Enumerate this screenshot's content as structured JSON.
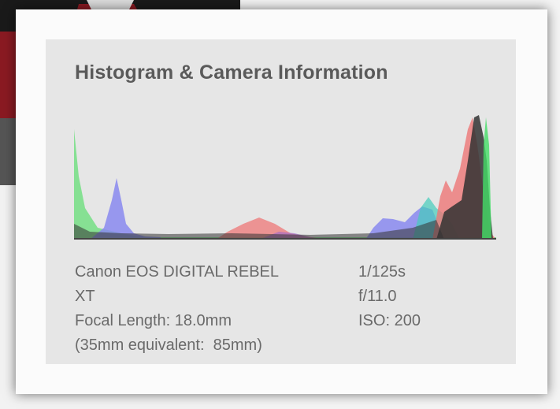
{
  "title": "Histogram & Camera Information",
  "info": {
    "left": [
      "Canon EOS DIGITAL REBEL",
      "XT",
      "Focal Length: 18.0mm",
      "(35mm equivalent:  85mm)"
    ],
    "right": [
      "1/125s",
      "f/11.0",
      "ISO: 200"
    ]
  }
}
